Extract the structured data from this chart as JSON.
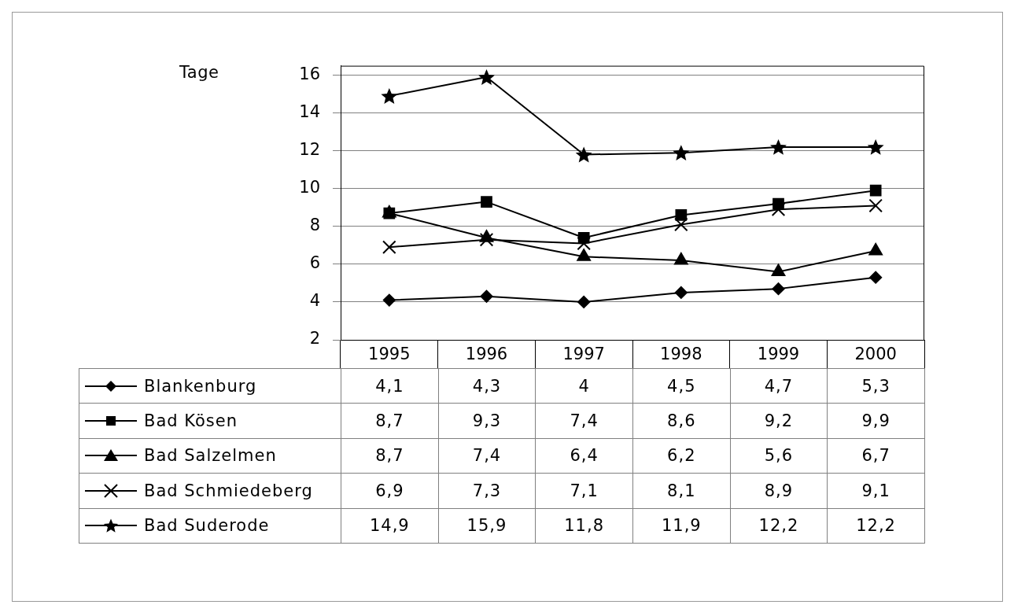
{
  "chart_data": {
    "type": "line",
    "ylabel": "Tage",
    "categories": [
      "1995",
      "1996",
      "1997",
      "1998",
      "1999",
      "2000"
    ],
    "series": [
      {
        "name": "Blankenburg",
        "color": "#000000",
        "marker": "diamond",
        "values": [
          4.1,
          4.3,
          4,
          4.5,
          4.7,
          5.3
        ],
        "value_labels": [
          "4,1",
          "4,3",
          "4",
          "4,5",
          "4,7",
          "5,3"
        ]
      },
      {
        "name": "Bad Kösen",
        "color": "#000000",
        "marker": "square",
        "values": [
          8.7,
          9.3,
          7.4,
          8.6,
          9.2,
          9.9
        ],
        "value_labels": [
          "8,7",
          "9,3",
          "7,4",
          "8,6",
          "9,2",
          "9,9"
        ]
      },
      {
        "name": "Bad Salzelmen",
        "color": "#000000",
        "marker": "triangle",
        "values": [
          8.7,
          7.4,
          6.4,
          6.2,
          5.6,
          6.7
        ],
        "value_labels": [
          "8,7",
          "7,4",
          "6,4",
          "6,2",
          "5,6",
          "6,7"
        ]
      },
      {
        "name": "Bad Schmiedeberg",
        "color": "#000000",
        "marker": "cross",
        "values": [
          6.9,
          7.3,
          7.1,
          8.1,
          8.9,
          9.1
        ],
        "value_labels": [
          "6,9",
          "7,3",
          "7,1",
          "8,1",
          "8,9",
          "9,1"
        ]
      },
      {
        "name": "Bad Suderode",
        "color": "#000000",
        "marker": "star",
        "values": [
          14.9,
          15.9,
          11.8,
          11.9,
          12.2,
          12.2
        ],
        "value_labels": [
          "14,9",
          "15,9",
          "11,8",
          "11,9",
          "12,2",
          "12,2"
        ]
      }
    ],
    "ylim": [
      2,
      16.5
    ],
    "yticks": [
      2,
      4,
      6,
      8,
      10,
      12,
      14,
      16
    ],
    "grid": "y",
    "legend": "bottom left"
  }
}
